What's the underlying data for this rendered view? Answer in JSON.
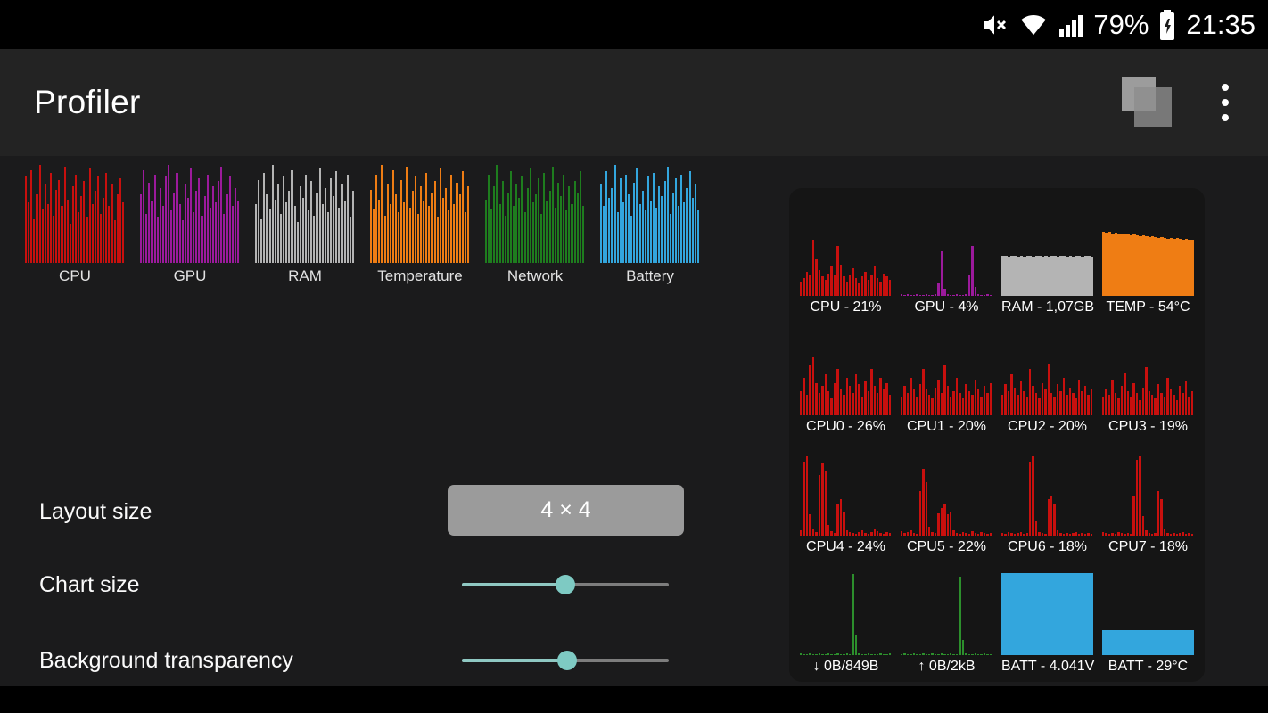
{
  "status_bar": {
    "battery_percent": "79%",
    "time": "21:35"
  },
  "app_bar": {
    "title": "Profiler"
  },
  "thumbnails": [
    {
      "label": "CPU",
      "color": "#c8100e",
      "type": "bars",
      "values": [
        88,
        62,
        95,
        45,
        70,
        100,
        55,
        80,
        60,
        92,
        48,
        75,
        85,
        58,
        98,
        65,
        40,
        78,
        90,
        52,
        68,
        84,
        46,
        96,
        60,
        74,
        88,
        50,
        66,
        92,
        58,
        80,
        44,
        70,
        86,
        62
      ]
    },
    {
      "label": "GPU",
      "color": "#9c1a9c",
      "type": "bars",
      "values": [
        70,
        95,
        50,
        82,
        64,
        90,
        46,
        76,
        58,
        88,
        100,
        54,
        72,
        92,
        60,
        44,
        80,
        66,
        96,
        52,
        74,
        86,
        48,
        68,
        90,
        56,
        78,
        62,
        84,
        98,
        50,
        70,
        88,
        58,
        76,
        64
      ]
    },
    {
      "label": "RAM",
      "color": "#b4b4b4",
      "type": "bars",
      "values": [
        60,
        85,
        45,
        92,
        70,
        55,
        100,
        65,
        80,
        50,
        88,
        62,
        74,
        95,
        58,
        42,
        78,
        66,
        90,
        54,
        84,
        48,
        72,
        96,
        60,
        76,
        52,
        86,
        68,
        94,
        56,
        80,
        64,
        90,
        46,
        74
      ]
    },
    {
      "label": "Temperature",
      "color": "#ef7d14",
      "type": "bars",
      "values": [
        75,
        55,
        90,
        65,
        100,
        48,
        80,
        60,
        95,
        70,
        52,
        85,
        62,
        98,
        56,
        74,
        88,
        50,
        78,
        64,
        92,
        58,
        72,
        84,
        46,
        96,
        66,
        76,
        54,
        90,
        60,
        82,
        70,
        94,
        52,
        78
      ]
    },
    {
      "label": "Network",
      "color": "#1e7d1e",
      "type": "bars",
      "values": [
        65,
        90,
        55,
        78,
        100,
        60,
        84,
        48,
        72,
        94,
        58,
        80,
        66,
        88,
        52,
        76,
        96,
        62,
        70,
        86,
        50,
        92,
        64,
        74,
        98,
        56,
        82,
        68,
        90,
        54,
        78,
        60,
        84,
        72,
        94,
        58
      ]
    },
    {
      "label": "Battery",
      "color": "#33a6dd",
      "type": "bars",
      "values": [
        80,
        58,
        94,
        66,
        76,
        100,
        52,
        86,
        62,
        90,
        70,
        48,
        82,
        96,
        60,
        74,
        54,
        88,
        64,
        92,
        56,
        78,
        68,
        84,
        98,
        50,
        72,
        86,
        58,
        90,
        62,
        76,
        94,
        66,
        80,
        54
      ]
    }
  ],
  "settings": {
    "layout_size_label": "Layout size",
    "layout_size_value": "4 × 4",
    "chart_size_label": "Chart size",
    "chart_size_percent": 50,
    "background_transparency_label": "Background transparency",
    "background_transparency_percent": 51
  },
  "widget": {
    "cells": [
      {
        "label": "CPU - 21%",
        "color": "#c8100e",
        "type": "bars",
        "values": [
          16,
          20,
          28,
          24,
          65,
          42,
          30,
          22,
          18,
          26,
          34,
          24,
          58,
          36,
          22,
          16,
          24,
          32,
          20,
          14,
          22,
          28,
          18,
          24,
          34,
          20,
          16,
          26,
          22,
          18
        ]
      },
      {
        "label": "GPU - 4%",
        "color": "#9c1a9c",
        "type": "bars",
        "values": [
          2,
          1,
          2,
          1,
          1,
          2,
          1,
          1,
          2,
          1,
          1,
          2,
          14,
          52,
          8,
          2,
          1,
          1,
          2,
          1,
          1,
          2,
          24,
          58,
          10,
          2,
          1,
          1,
          2,
          1
        ]
      },
      {
        "label": "RAM - 1,07GB",
        "color": "#b4b4b4",
        "type": "area",
        "values": [
          46,
          46,
          45,
          46,
          46,
          45,
          46,
          45,
          46,
          46,
          45,
          46,
          46,
          45,
          46,
          45,
          46,
          46,
          45,
          46,
          46,
          45,
          46,
          45,
          46,
          46,
          45,
          46,
          46,
          45
        ]
      },
      {
        "label": "TEMP - 54°C",
        "color": "#ef7d14",
        "type": "area",
        "values": [
          74,
          73,
          74,
          72,
          73,
          72,
          71,
          72,
          71,
          70,
          71,
          70,
          69,
          70,
          69,
          68,
          69,
          68,
          67,
          68,
          67,
          66,
          67,
          66,
          67,
          66,
          65,
          66,
          65,
          65
        ]
      },
      {
        "label": "CPU0 - 26%",
        "color": "#c8100e",
        "type": "bars",
        "values": [
          28,
          44,
          24,
          58,
          68,
          38,
          26,
          34,
          48,
          28,
          20,
          38,
          54,
          30,
          24,
          44,
          34,
          26,
          48,
          36,
          22,
          40,
          28,
          54,
          34,
          26,
          44,
          30,
          38,
          24
        ]
      },
      {
        "label": "CPU1 - 20%",
        "color": "#c8100e",
        "type": "bars",
        "values": [
          22,
          34,
          26,
          44,
          30,
          22,
          36,
          54,
          30,
          24,
          20,
          32,
          42,
          26,
          58,
          34,
          22,
          28,
          44,
          26,
          20,
          36,
          28,
          24,
          42,
          30,
          22,
          34,
          26,
          38
        ]
      },
      {
        "label": "CPU2 - 20%",
        "color": "#c8100e",
        "type": "bars",
        "values": [
          24,
          36,
          28,
          48,
          32,
          24,
          40,
          28,
          22,
          54,
          34,
          26,
          20,
          38,
          30,
          60,
          26,
          22,
          36,
          28,
          44,
          24,
          32,
          26,
          20,
          42,
          28,
          34,
          24,
          30
        ]
      },
      {
        "label": "CPU3 - 19%",
        "color": "#c8100e",
        "type": "bars",
        "values": [
          22,
          30,
          24,
          42,
          26,
          20,
          34,
          50,
          28,
          22,
          38,
          26,
          18,
          32,
          56,
          28,
          24,
          20,
          36,
          26,
          22,
          44,
          30,
          24,
          18,
          34,
          26,
          40,
          22,
          28
        ]
      },
      {
        "label": "CPU4 - 24%",
        "color": "#c8100e",
        "type": "bars",
        "values": [
          6,
          86,
          92,
          24,
          8,
          4,
          70,
          84,
          76,
          12,
          5,
          3,
          36,
          42,
          28,
          6,
          4,
          3,
          2,
          4,
          6,
          3,
          2,
          4,
          8,
          5,
          3,
          2,
          4,
          3
        ]
      },
      {
        "label": "CPU5 - 22%",
        "color": "#c8100e",
        "type": "bars",
        "values": [
          5,
          3,
          4,
          6,
          3,
          2,
          52,
          78,
          62,
          10,
          4,
          3,
          26,
          32,
          36,
          24,
          28,
          6,
          3,
          2,
          4,
          3,
          2,
          5,
          3,
          2,
          4,
          3,
          2,
          3
        ]
      },
      {
        "label": "CPU6 - 18%",
        "color": "#c8100e",
        "type": "bars",
        "values": [
          3,
          2,
          4,
          3,
          2,
          3,
          4,
          2,
          3,
          86,
          92,
          16,
          4,
          3,
          2,
          42,
          46,
          36,
          6,
          3,
          2,
          3,
          2,
          3,
          4,
          2,
          3,
          2,
          3,
          2
        ]
      },
      {
        "label": "CPU7 - 18%",
        "color": "#c8100e",
        "type": "bars",
        "values": [
          4,
          3,
          2,
          3,
          2,
          4,
          3,
          2,
          3,
          2,
          46,
          88,
          92,
          22,
          6,
          3,
          2,
          3,
          52,
          42,
          8,
          3,
          2,
          3,
          2,
          3,
          4,
          2,
          3,
          2
        ]
      },
      {
        "label": "↓ 0B/849B",
        "color": "#2c8f2c",
        "type": "bars",
        "values": [
          2,
          1,
          1,
          2,
          1,
          1,
          2,
          1,
          1,
          2,
          1,
          1,
          2,
          1,
          1,
          2,
          1,
          95,
          24,
          2,
          1,
          1,
          2,
          1,
          1,
          1,
          2,
          1,
          1,
          2
        ]
      },
      {
        "label": "↑ 0B/2kB",
        "color": "#2c8f2c",
        "type": "bars",
        "values": [
          1,
          2,
          1,
          1,
          2,
          1,
          1,
          2,
          1,
          1,
          2,
          1,
          1,
          2,
          1,
          1,
          2,
          1,
          1,
          92,
          18,
          2,
          1,
          1,
          2,
          1,
          1,
          2,
          1,
          1
        ]
      },
      {
        "label": "BATT - 4.041V",
        "color": "#33a6dd",
        "type": "area",
        "values": [
          96,
          96,
          96,
          96,
          96,
          96,
          96,
          96,
          96,
          96,
          96,
          96,
          96,
          96,
          96,
          96,
          96,
          96,
          96,
          96,
          96,
          96,
          96,
          96,
          96,
          96,
          96,
          96,
          96,
          96
        ]
      },
      {
        "label": "BATT - 29°C",
        "color": "#33a6dd",
        "type": "area",
        "values": [
          29,
          29,
          29,
          29,
          29,
          29,
          29,
          29,
          29,
          29,
          29,
          29,
          29,
          29,
          29,
          29,
          29,
          29,
          29,
          29,
          29,
          29,
          29,
          29,
          29,
          29,
          29,
          29,
          29,
          29
        ]
      }
    ]
  }
}
